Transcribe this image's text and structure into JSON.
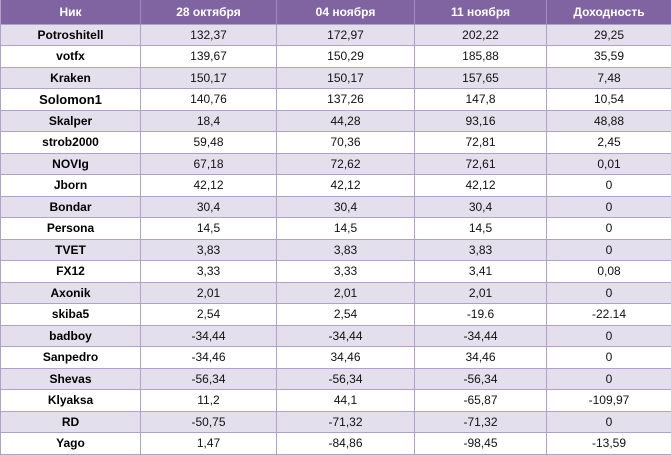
{
  "header": {
    "col_name": "Ник",
    "col_d1": "28 октября",
    "col_d2": "04 ноября",
    "col_d3": "11 ноября",
    "col_yield": "Доходность"
  },
  "rows": [
    {
      "name": "Potroshitell",
      "d1": "132,37",
      "d2": "172,97",
      "d3": "202,22",
      "yield": "29,25"
    },
    {
      "name": "votfx",
      "d1": "139,67",
      "d2": "150,29",
      "d3": "185,88",
      "yield": "35,59"
    },
    {
      "name": "Kraken",
      "d1": "150,17",
      "d2": "150,17",
      "d3": "157,65",
      "yield": "7,48"
    },
    {
      "name": "Solomon1",
      "d1": "140,76",
      "d2": "137,26",
      "d3": "147,8",
      "yield": "10,54"
    },
    {
      "name": "Skalper",
      "d1": "18,4",
      "d2": "44,28",
      "d3": "93,16",
      "yield": "48,88"
    },
    {
      "name": "strob2000",
      "d1": "59,48",
      "d2": "70,36",
      "d3": "72,81",
      "yield": "2,45"
    },
    {
      "name": "NOVIg",
      "d1": "67,18",
      "d2": "72,62",
      "d3": "72,61",
      "yield": "0,01"
    },
    {
      "name": "Jborn",
      "d1": "42,12",
      "d2": "42,12",
      "d3": "42,12",
      "yield": "0"
    },
    {
      "name": "Bondar",
      "d1": "30,4",
      "d2": "30,4",
      "d3": "30,4",
      "yield": "0"
    },
    {
      "name": "Persona",
      "d1": "14,5",
      "d2": "14,5",
      "d3": "14,5",
      "yield": "0"
    },
    {
      "name": "TVET",
      "d1": "3,83",
      "d2": "3,83",
      "d3": "3,83",
      "yield": "0"
    },
    {
      "name": "FX12",
      "d1": "3,33",
      "d2": "3,33",
      "d3": "3,41",
      "yield": "0,08"
    },
    {
      "name": "Axonik",
      "d1": "2,01",
      "d2": "2,01",
      "d3": "2,01",
      "yield": "0"
    },
    {
      "name": "skiba5",
      "d1": "2,54",
      "d2": "2,54",
      "d3": "-19.6",
      "yield": "-22.14"
    },
    {
      "name": "badboy",
      "d1": "-34,44",
      "d2": "-34,44",
      "d3": "-34,44",
      "yield": "0"
    },
    {
      "name": "Sanpedro",
      "d1": "-34,46",
      "d2": "34,46",
      "d3": "34,46",
      "yield": "0"
    },
    {
      "name": "Shevas",
      "d1": "-56,34",
      "d2": "-56,34",
      "d3": "-56,34",
      "yield": "0"
    },
    {
      "name": "Klyaksa",
      "d1": "11,2",
      "d2": "44,1",
      "d3": "-65,87",
      "yield": "-109,97"
    },
    {
      "name": "RD",
      "d1": "-50,75",
      "d2": "-71,32",
      "d3": "-71,32",
      "yield": "0"
    },
    {
      "name": "Yago",
      "d1": "1,47",
      "d2": "-84,86",
      "d3": "-98,45",
      "yield": "-13,59"
    }
  ]
}
